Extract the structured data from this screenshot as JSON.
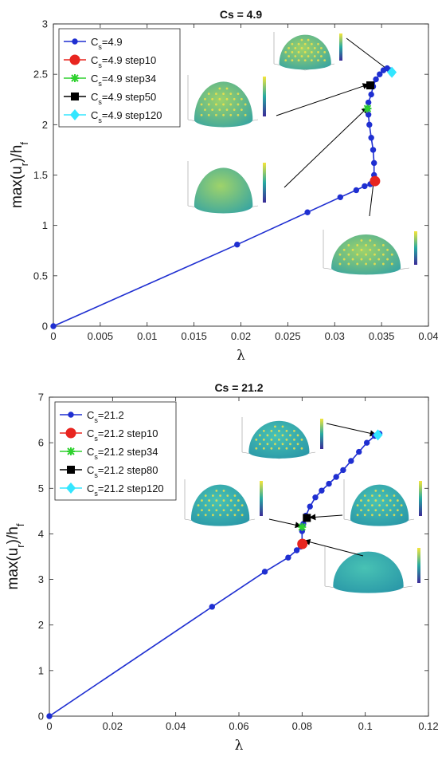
{
  "chart_data": [
    {
      "type": "line",
      "title": "Cs = 4.9",
      "xlabel": "λ",
      "ylabel": "max(u_r)/h_f",
      "xlim": [
        0,
        0.04
      ],
      "ylim": [
        0,
        3
      ],
      "xticks": [
        "0",
        "0.005",
        "0.01",
        "0.015",
        "0.02",
        "0.025",
        "0.03",
        "0.035",
        "0.04"
      ],
      "yticks": [
        "0",
        "0.5",
        "1",
        "1.5",
        "2",
        "2.5",
        "3"
      ],
      "series": [
        {
          "name": "Cs=4.9",
          "color": "#1f2fd1",
          "marker": "circle",
          "x": [
            0,
            0.0196,
            0.0271,
            0.0306,
            0.0323,
            0.0332,
            0.0338,
            0.0341,
            0.0342,
            0.0342,
            0.0341,
            0.0339,
            0.0337,
            0.0336,
            0.0335,
            0.0336,
            0.0339,
            0.0341,
            0.0344,
            0.0348,
            0.0352,
            0.0356,
            0.0359,
            0.0361
          ],
          "y": [
            0,
            0.81,
            1.13,
            1.28,
            1.35,
            1.39,
            1.41,
            1.43,
            1.5,
            1.62,
            1.75,
            1.87,
            2.0,
            2.1,
            2.16,
            2.22,
            2.3,
            2.38,
            2.45,
            2.5,
            2.54,
            2.56,
            2.54,
            2.51
          ]
        },
        {
          "name": "Cs=4.9 step10",
          "color": "#e8251f",
          "marker": "circle-big",
          "x": [
            0.0343
          ],
          "y": [
            1.44
          ]
        },
        {
          "name": "Cs=4.9 step34",
          "color": "#2ed12e",
          "marker": "star",
          "x": [
            0.0335
          ],
          "y": [
            2.16
          ]
        },
        {
          "name": "Cs=4.9 step50",
          "color": "#000000",
          "marker": "square",
          "x": [
            0.0338
          ],
          "y": [
            2.39
          ]
        },
        {
          "name": "Cs=4.9 step120",
          "color": "#33e6ff",
          "marker": "diamond",
          "x": [
            0.0361
          ],
          "y": [
            2.52
          ]
        }
      ],
      "legend_position": "top-left",
      "legend": [
        {
          "pre": "C",
          "sub": "s",
          "post": "=4.9"
        },
        {
          "pre": "C",
          "sub": "s",
          "post": "=4.9 step10"
        },
        {
          "pre": "C",
          "sub": "s",
          "post": "=4.9 step34"
        },
        {
          "pre": "C",
          "sub": "s",
          "post": "=4.9 step50"
        },
        {
          "pre": "C",
          "sub": "s",
          "post": "=4.9 step120"
        }
      ],
      "annotations": [
        "inset-dome-step10",
        "inset-dome-step34",
        "inset-dome-step50",
        "inset-dome-step120"
      ]
    },
    {
      "type": "line",
      "title": "Cs = 21.2",
      "xlabel": "λ",
      "ylabel": "max(u_r)/h_f",
      "xlim": [
        0,
        0.12
      ],
      "ylim": [
        0,
        7
      ],
      "xticks": [
        "0",
        "0.02",
        "0.04",
        "0.06",
        "0.08",
        "0.1",
        "0.12"
      ],
      "yticks": [
        "0",
        "1",
        "2",
        "3",
        "4",
        "5",
        "6",
        "7"
      ],
      "series": [
        {
          "name": "Cs=21.2",
          "color": "#1f2fd1",
          "marker": "circle",
          "x": [
            0,
            0.0515,
            0.0682,
            0.0756,
            0.0783,
            0.0796,
            0.08,
            0.08,
            0.0804,
            0.0812,
            0.0825,
            0.0842,
            0.0862,
            0.0885,
            0.0908,
            0.093,
            0.0955,
            0.098,
            0.1005,
            0.103,
            0.1045
          ],
          "y": [
            0,
            2.4,
            3.17,
            3.48,
            3.64,
            3.72,
            3.8,
            4.06,
            4.22,
            4.4,
            4.6,
            4.8,
            4.95,
            5.1,
            5.25,
            5.4,
            5.6,
            5.8,
            6.0,
            6.15,
            6.2
          ]
        },
        {
          "name": "Cs=21.2 step10",
          "color": "#e8251f",
          "marker": "circle-big",
          "x": [
            0.0801
          ],
          "y": [
            3.78
          ]
        },
        {
          "name": "Cs=21.2 step34",
          "color": "#2ed12e",
          "marker": "star",
          "x": [
            0.08
          ],
          "y": [
            4.15
          ]
        },
        {
          "name": "Cs=21.2 step80",
          "color": "#000000",
          "marker": "square",
          "x": [
            0.0815
          ],
          "y": [
            4.35
          ]
        },
        {
          "name": "Cs=21.2 step120",
          "color": "#33e6ff",
          "marker": "diamond",
          "x": [
            0.104
          ],
          "y": [
            6.17
          ]
        }
      ],
      "legend_position": "top-left",
      "legend": [
        {
          "pre": "C",
          "sub": "s",
          "post": "=21.2"
        },
        {
          "pre": "C",
          "sub": "s",
          "post": "=21.2 step10"
        },
        {
          "pre": "C",
          "sub": "s",
          "post": "=21.2 step34"
        },
        {
          "pre": "C",
          "sub": "s",
          "post": "=21.2 step80"
        },
        {
          "pre": "C",
          "sub": "s",
          "post": "=21.2 step120"
        }
      ],
      "annotations": [
        "inset-dome-step10",
        "inset-dome-step34",
        "inset-dome-step80",
        "inset-dome-step120"
      ]
    }
  ]
}
